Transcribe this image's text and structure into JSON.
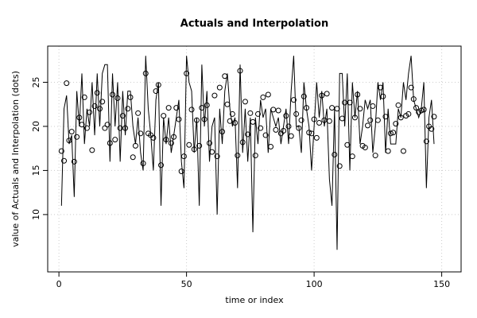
{
  "chart_data": {
    "type": "line",
    "title": "Actuals and Interpolation",
    "xlabel": "time or index",
    "ylabel": "value of Actuals and Interpolation (dots)",
    "xlim": [
      -4.4,
      157.6
    ],
    "ylim": [
      3.5,
      29.1
    ],
    "xticks": [
      0,
      50,
      100,
      150
    ],
    "yticks": [
      10,
      15,
      20,
      25
    ],
    "grid": true,
    "x": [
      1,
      2,
      3,
      4,
      5,
      6,
      7,
      8,
      9,
      10,
      11,
      12,
      13,
      14,
      15,
      16,
      17,
      18,
      19,
      20,
      21,
      22,
      23,
      24,
      25,
      26,
      27,
      28,
      29,
      30,
      31,
      32,
      33,
      34,
      35,
      36,
      37,
      38,
      39,
      40,
      41,
      42,
      43,
      44,
      45,
      46,
      47,
      48,
      49,
      50,
      51,
      52,
      53,
      54,
      55,
      56,
      57,
      58,
      59,
      60,
      61,
      62,
      63,
      64,
      65,
      66,
      67,
      68,
      69,
      70,
      71,
      72,
      73,
      74,
      75,
      76,
      77,
      78,
      79,
      80,
      81,
      82,
      83,
      84,
      85,
      86,
      87,
      88,
      89,
      90,
      91,
      92,
      93,
      94,
      95,
      96,
      97,
      98,
      99,
      100,
      101,
      102,
      103,
      104,
      105,
      106,
      107,
      108,
      109,
      110,
      111,
      112,
      113,
      114,
      115,
      116,
      117,
      118,
      119,
      120,
      121,
      122,
      123,
      124,
      125,
      126,
      127,
      128,
      129,
      130,
      131,
      132,
      133,
      134,
      135,
      136,
      137,
      138,
      139,
      140,
      141,
      142,
      143,
      144,
      145,
      146,
      147
    ],
    "series": [
      {
        "style": "line",
        "color": "#000000",
        "values": [
          11,
          22,
          23.5,
          18,
          19,
          12,
          24,
          20,
          26,
          18,
          22,
          20,
          25,
          19,
          26,
          20,
          26,
          27,
          27,
          16,
          26,
          20,
          25,
          16,
          24,
          19,
          24,
          24,
          20,
          18,
          21,
          17,
          15,
          28,
          22,
          19,
          15,
          23,
          25,
          11,
          21,
          18,
          21,
          17,
          19,
          21,
          23,
          16,
          13,
          28,
          25,
          24,
          17,
          21,
          11,
          27,
          20,
          24,
          16,
          20,
          21,
          10,
          22,
          18,
          24,
          26,
          22,
          20,
          21,
          13,
          27,
          17,
          22,
          16,
          21,
          8,
          21,
          18,
          23,
          21,
          22,
          17,
          22,
          21,
          20,
          21,
          18,
          20,
          22,
          18,
          24,
          28,
          20,
          20,
          17,
          25,
          22,
          20,
          15,
          20,
          25,
          21,
          24,
          20,
          22,
          14,
          11,
          22,
          6,
          26,
          26,
          20,
          26,
          15,
          25,
          21,
          24,
          18,
          20,
          23,
          22,
          23,
          17,
          20,
          25,
          23,
          25,
          17,
          22,
          18,
          18,
          18,
          22,
          21,
          25,
          23,
          26,
          28,
          23,
          22,
          21,
          22,
          25,
          13,
          21,
          23,
          18
        ]
      },
      {
        "style": "points",
        "color": "#000000",
        "values": [
          17.2,
          16.1,
          24.9,
          18.4,
          19.4,
          16.0,
          18.8,
          21.0,
          20.2,
          23.3,
          19.8,
          21.6,
          17.3,
          22.3,
          23.8,
          22.0,
          22.8,
          19.8,
          20.2,
          18.1,
          23.6,
          18.5,
          23.2,
          19.8,
          21.2,
          19.8,
          22.0,
          23.3,
          16.5,
          17.8,
          21.5,
          19.2,
          15.8,
          26.0,
          19.2,
          19.0,
          18.7,
          24.0,
          24.7,
          15.6,
          21.2,
          18.5,
          22.1,
          18.1,
          18.8,
          22.1,
          20.8,
          14.9,
          16.6,
          26.0,
          17.9,
          21.9,
          17.4,
          20.7,
          17.8,
          22.1,
          20.8,
          22.4,
          18.1,
          17.1,
          23.5,
          16.6,
          24.4,
          19.4,
          25.7,
          22.5,
          20.6,
          21.4,
          20.4,
          16.7,
          26.3,
          18.2,
          22.8,
          19.1,
          21.5,
          20.5,
          16.7,
          21.4,
          19.8,
          23.3,
          19.0,
          23.6,
          17.7,
          21.9,
          19.6,
          21.8,
          19.2,
          19.5,
          21.2,
          20.0,
          18.9,
          23.0,
          21.4,
          19.8,
          20.7,
          23.4,
          22.1,
          19.3,
          19.2,
          20.8,
          18.7,
          20.4,
          23.5,
          20.7,
          23.7,
          20.6,
          22.1,
          16.8,
          22.0,
          15.5,
          20.9,
          22.7,
          17.9,
          22.7,
          16.6,
          21.0,
          23.6,
          22.0,
          17.8,
          17.6,
          20.1,
          20.7,
          22.3,
          16.7,
          20.7,
          24.4,
          23.4,
          21.1,
          17.2,
          19.2,
          19.3,
          20.3,
          22.4,
          21.0,
          17.2,
          21.2,
          21.4,
          24.4,
          23.1,
          22.1,
          21.6,
          21.8,
          21.9,
          18.3,
          20.0,
          19.7,
          21.1
        ]
      }
    ]
  }
}
